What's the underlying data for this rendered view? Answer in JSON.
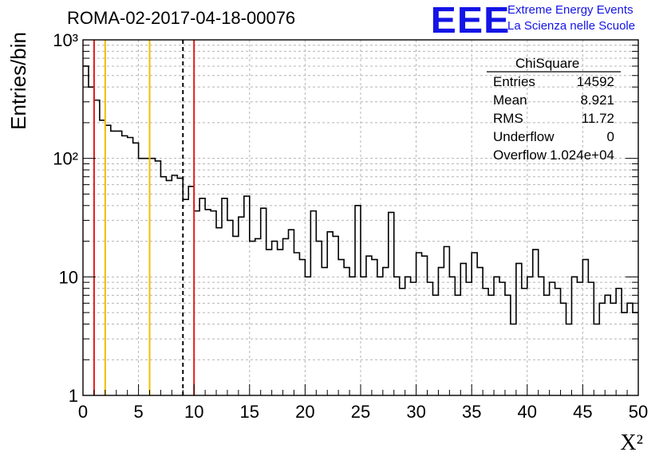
{
  "header": {
    "title": "ROMA-02-2017-04-18-00076",
    "logo_text": "EEE",
    "logo_line1": "Extreme Energy Events",
    "logo_line2": "La Scienza nelle Scuole"
  },
  "stats_box": {
    "title": "ChiSquare",
    "rows": [
      {
        "key": "Entries",
        "value": "14592"
      },
      {
        "key": "Mean",
        "value": "8.921"
      },
      {
        "key": "RMS",
        "value": "11.72"
      },
      {
        "key": "Underflow",
        "value": "0"
      },
      {
        "key": "Overflow",
        "value": "1.024e+04"
      }
    ]
  },
  "colors": {
    "histogram": "#000000",
    "red_line": "#e41a1a",
    "yellow_line": "#f2be00",
    "dashed_line": "#000000",
    "grid": "#b4b4b4"
  },
  "chart_data": {
    "type": "histogram",
    "title": "ROMA-02-2017-04-18-00076",
    "xlabel": "X²",
    "ylabel": "Entries/bin",
    "xlim": [
      0,
      50
    ],
    "ylim": [
      1,
      1000
    ],
    "yscale": "log",
    "grid": true,
    "bin_width": 0.5,
    "x_ticks": [
      "0",
      "5",
      "10",
      "15",
      "20",
      "25",
      "30",
      "35",
      "40",
      "45",
      "50"
    ],
    "y_tick_labels": [
      "1",
      "10",
      "10²",
      "10³"
    ],
    "y_tick_values": [
      1,
      10,
      100,
      1000
    ],
    "values": [
      600,
      400,
      310,
      210,
      190,
      170,
      170,
      155,
      150,
      135,
      100,
      100,
      100,
      95,
      70,
      65,
      72,
      68,
      45,
      58,
      36,
      46,
      37,
      36,
      26,
      46,
      30,
      22,
      32,
      48,
      20,
      21,
      38,
      17,
      20,
      17,
      21,
      25,
      16,
      14,
      10,
      36,
      20,
      12,
      24,
      22,
      14,
      12,
      10,
      40,
      10,
      15,
      14,
      10,
      12,
      35,
      10,
      8,
      10,
      9,
      16,
      15,
      9,
      7,
      12,
      18,
      10,
      7,
      13,
      9,
      16,
      12,
      8,
      7,
      10,
      9,
      7,
      4,
      13,
      8,
      10,
      17,
      10,
      7,
      9,
      8,
      6,
      4,
      10,
      9,
      14,
      9,
      4,
      6,
      7,
      6,
      8,
      5,
      6,
      5
    ],
    "vertical_lines": [
      {
        "x": 1,
        "color": "red",
        "style": "solid"
      },
      {
        "x": 2,
        "color": "yellow",
        "style": "solid"
      },
      {
        "x": 6,
        "color": "yellow",
        "style": "solid"
      },
      {
        "x": 9,
        "color": "black",
        "style": "dashed"
      },
      {
        "x": 10,
        "color": "red",
        "style": "solid"
      }
    ]
  }
}
